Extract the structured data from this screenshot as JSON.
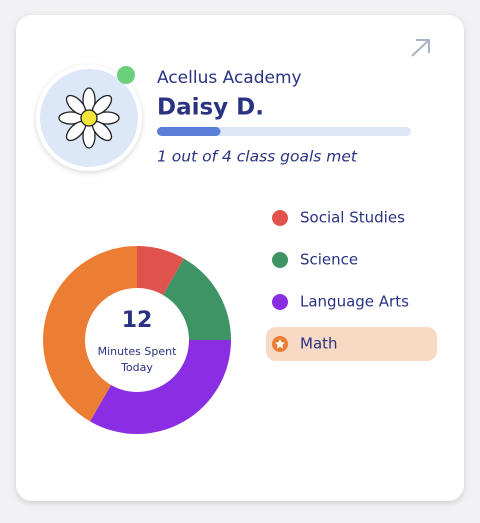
{
  "header": {
    "school": "Acellus Academy",
    "student": "Daisy D.",
    "goals_text": "1 out of 4 class goals met"
  },
  "progress": {
    "value": 25,
    "range": [
      0,
      100
    ]
  },
  "chart_data": {
    "type": "donut",
    "total": 12,
    "center_label": "Minutes Spent Today",
    "categories": [
      "Social Studies",
      "Science",
      "Language Arts",
      "Math"
    ],
    "values": [
      1,
      2,
      4,
      5
    ],
    "colors": [
      "#e0524c",
      "#3f9466",
      "#8a2ee3",
      "#ec7e34"
    ],
    "highlighted_index": 3
  }
}
